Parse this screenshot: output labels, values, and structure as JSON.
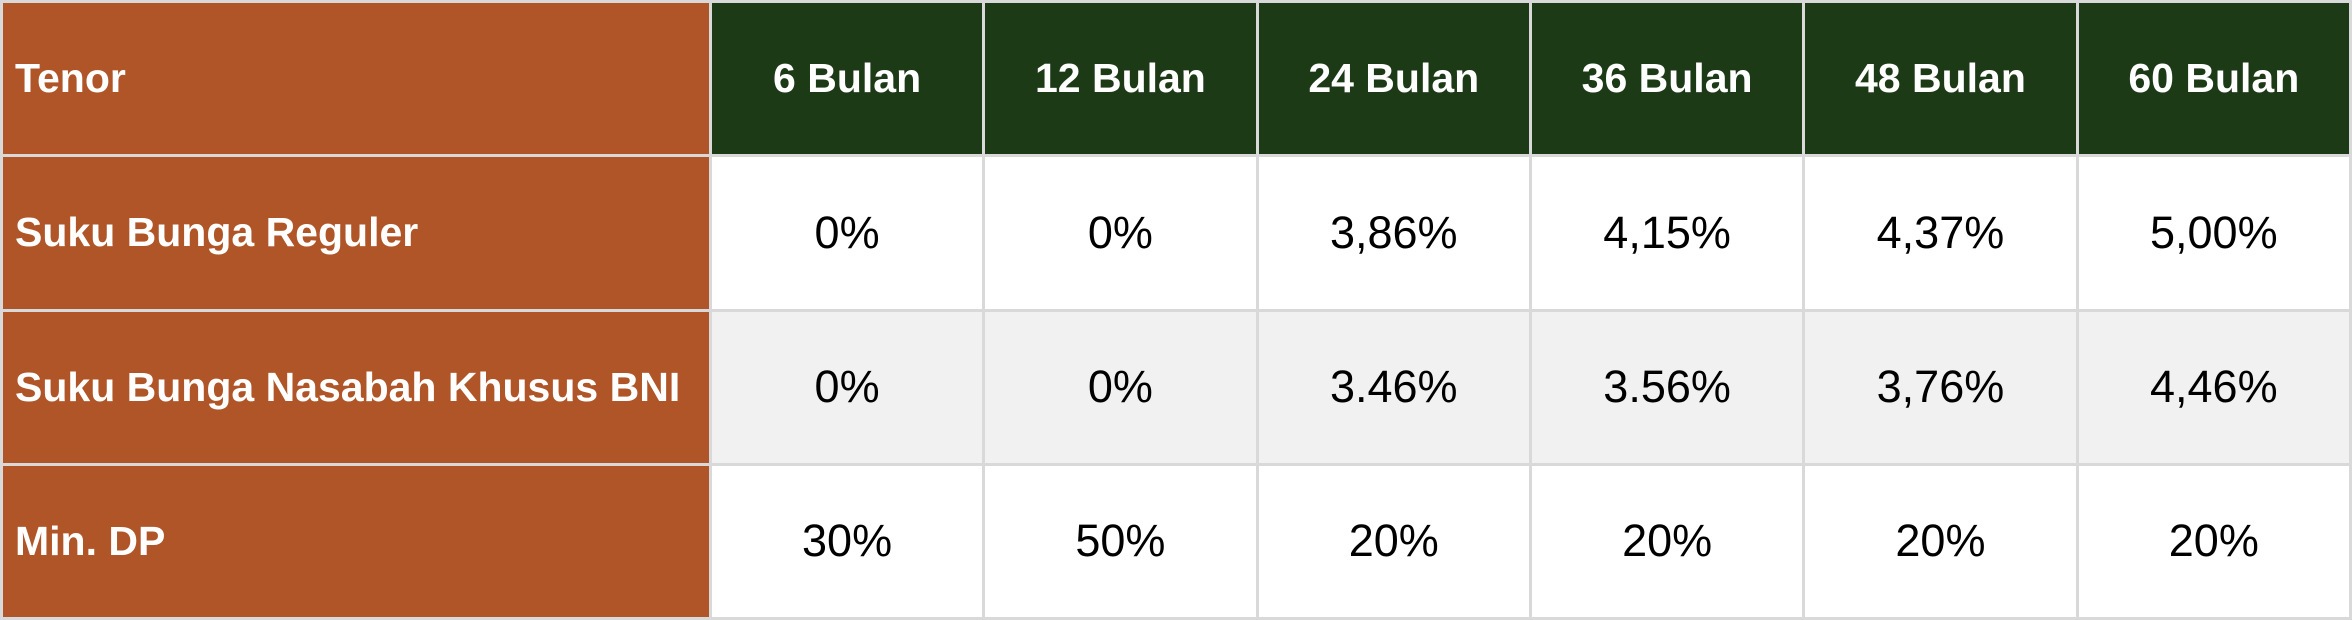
{
  "chart_data": {
    "type": "table",
    "header": [
      "Tenor",
      "6 Bulan",
      "12 Bulan",
      "24 Bulan",
      "36 Bulan",
      "48 Bulan",
      "60 Bulan"
    ],
    "rows": [
      {
        "label": "Suku Bunga Reguler",
        "values": [
          "0%",
          "0%",
          "3,86%",
          "4,15%",
          "4,37%",
          "5,00%"
        ]
      },
      {
        "label": "Suku Bunga Nasabah Khusus BNI",
        "values": [
          "0%",
          "0%",
          "3.46%",
          "3.56%",
          "3,76%",
          "4,46%"
        ]
      },
      {
        "label": "Min. DP",
        "values": [
          "30%",
          "50%",
          "20%",
          "20%",
          "20%",
          "20%"
        ]
      }
    ],
    "layout": {
      "first_column_is_row_labels": true,
      "banded_rows": true
    }
  },
  "colors": {
    "row_label_bg": "#b05528",
    "column_header_bg": "#1d3a17",
    "value_row_bg": "#ffffff",
    "value_row_alt_bg": "#f1f1f1",
    "gridline": "#d9d9d9",
    "header_text": "#ffffff",
    "value_text": "#000000"
  }
}
